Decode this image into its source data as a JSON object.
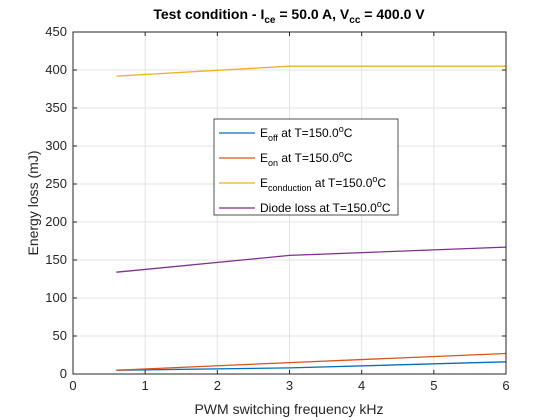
{
  "chart_data": {
    "type": "line",
    "title": {
      "prefix": "Test condition -  I",
      "sub1": "ce",
      "mid": " = 50.0 A, V",
      "sub2": "cc",
      "suffix": " = 400.0 V"
    },
    "xlabel": "PWM switching frequency kHz",
    "ylabel": "Energy loss (mJ)",
    "xlim": [
      0,
      6
    ],
    "ylim": [
      0,
      450
    ],
    "xticks": [
      "0",
      "1",
      "2",
      "3",
      "4",
      "5",
      "6"
    ],
    "yticks": [
      "0",
      "50",
      "100",
      "150",
      "200",
      "250",
      "300",
      "350",
      "400",
      "450"
    ],
    "grid": true,
    "legend_position": "center",
    "x": [
      0.6,
      3,
      6
    ],
    "series": [
      {
        "key": "eoff",
        "color": "#0072BD",
        "label": {
          "main": "E",
          "sub": "off",
          "tail": " at T=150.0",
          "sup": "o",
          "end": "C"
        },
        "values": [
          5,
          8,
          16
        ]
      },
      {
        "key": "eon",
        "color": "#D95319",
        "label": {
          "main": "E",
          "sub": "on",
          "tail": " at T=150.0",
          "sup": "o",
          "end": "C"
        },
        "values": [
          5,
          15,
          27
        ]
      },
      {
        "key": "econd",
        "color": "#EDB120",
        "label": {
          "main": "E",
          "sub": "conduction",
          "tail": " at T=150.0",
          "sup": "o",
          "end": "C"
        },
        "values": [
          392,
          405,
          405
        ]
      },
      {
        "key": "diode",
        "color": "#7E2F8E",
        "label": {
          "main": "Diode loss",
          "sub": "",
          "tail": " at T=150.0",
          "sup": "o",
          "end": "C"
        },
        "values": [
          134,
          156,
          167
        ]
      }
    ]
  }
}
